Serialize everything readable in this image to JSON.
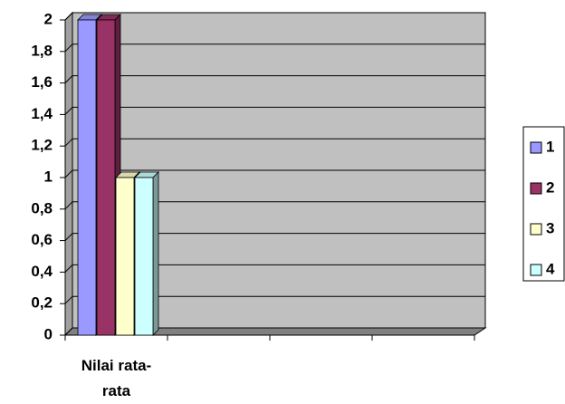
{
  "chart_data": {
    "type": "bar3d",
    "categories": [
      "Nilai rata-rata",
      null,
      null,
      null
    ],
    "series": [
      {
        "name": "1",
        "color": "#9999ff",
        "values": [
          2,
          null,
          null,
          null
        ]
      },
      {
        "name": "2",
        "color": "#993366",
        "values": [
          2,
          null,
          null,
          null
        ]
      },
      {
        "name": "3",
        "color": "#ffffcc",
        "values": [
          1,
          null,
          null,
          null
        ]
      },
      {
        "name": "4",
        "color": "#ccffff",
        "values": [
          1,
          null,
          null,
          null
        ]
      }
    ],
    "ylim": [
      0,
      2
    ],
    "yticks": [
      0,
      {
        "value": 0.2,
        "label": "0,2"
      },
      {
        "value": 0.4,
        "label": "0,4"
      },
      {
        "value": 0.6,
        "label": "0,6"
      },
      {
        "value": 0.8,
        "label": "0,8"
      },
      1,
      {
        "value": 1.2,
        "label": "1,2"
      },
      {
        "value": 1.4,
        "label": "1,4"
      },
      {
        "value": 1.6,
        "label": "1,6"
      },
      {
        "value": 1.8,
        "label": "1,8"
      },
      2
    ],
    "grid": true,
    "legend": "right",
    "wall_color": "#c0c0c0"
  }
}
